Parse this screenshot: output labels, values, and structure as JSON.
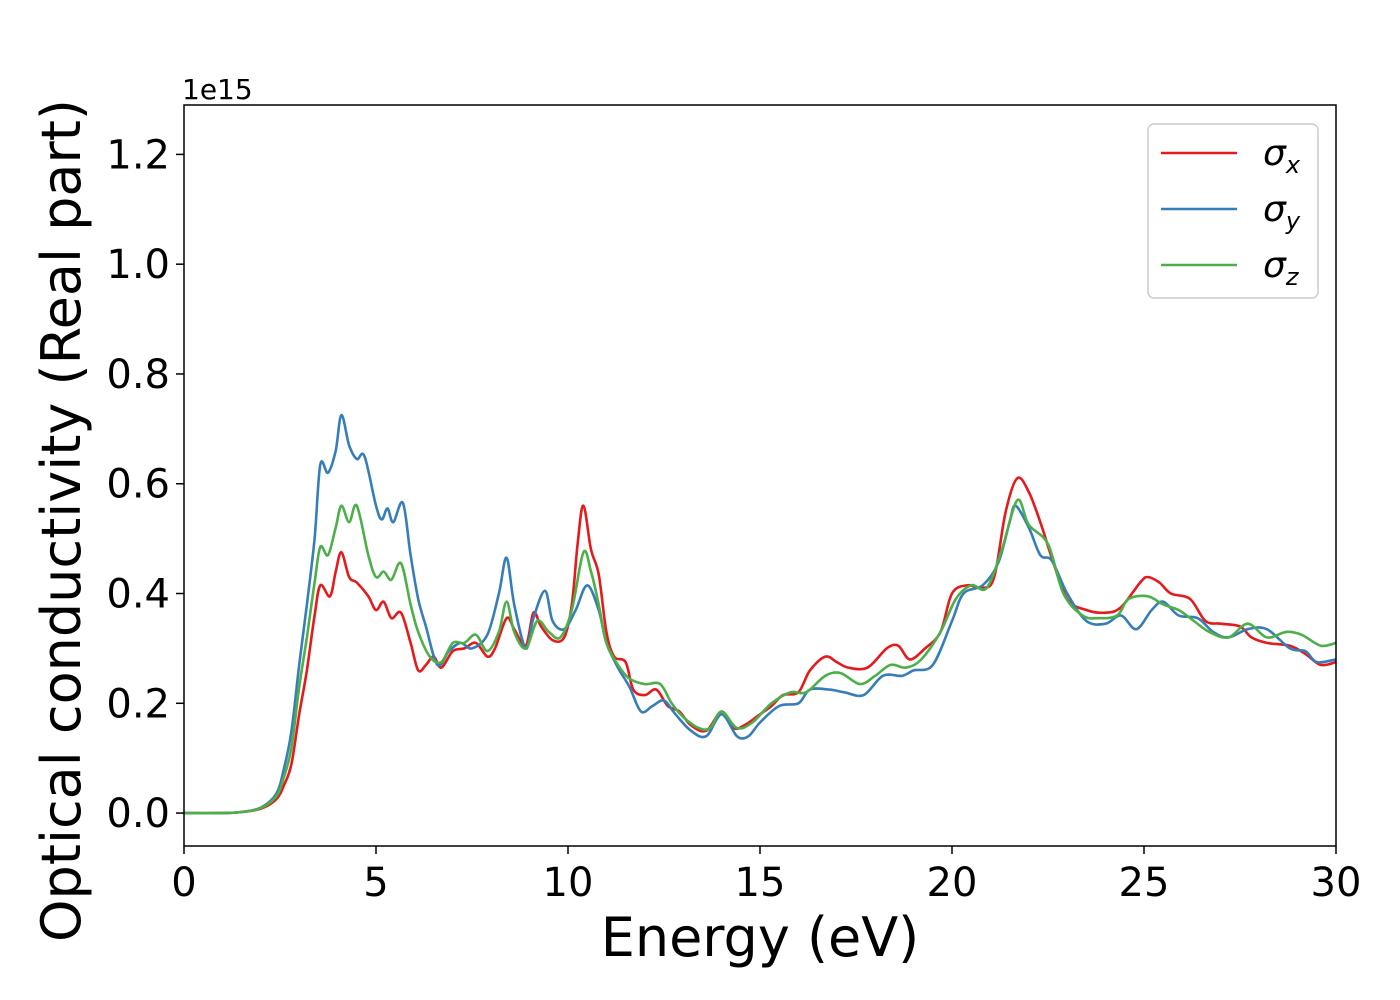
{
  "chart_data": {
    "type": "line",
    "xlabel": "Energy (eV)",
    "ylabel": "Optical conductivity (Real part)",
    "y_offset_label": "1e15",
    "xlim": [
      0,
      30
    ],
    "ylim": [
      -0.06,
      1.29
    ],
    "x_ticks": [
      0,
      5,
      10,
      15,
      20,
      25,
      30
    ],
    "x_tick_labels": [
      "0",
      "5",
      "10",
      "15",
      "20",
      "25",
      "30"
    ],
    "y_ticks": [
      0.0,
      0.2,
      0.4,
      0.6,
      0.8,
      1.0,
      1.2
    ],
    "y_tick_labels": [
      "0.0",
      "0.2",
      "0.4",
      "0.6",
      "0.8",
      "1.0",
      "1.2"
    ],
    "grid": false,
    "legend_position": "top-right",
    "series": [
      {
        "name": "σ",
        "subscript": "x",
        "color": "#e41a1c",
        "points": [
          [
            0,
            0
          ],
          [
            1,
            0
          ],
          [
            1.5,
            0.002
          ],
          [
            2,
            0.008
          ],
          [
            2.4,
            0.025
          ],
          [
            2.6,
            0.05
          ],
          [
            2.8,
            0.09
          ],
          [
            3.0,
            0.18
          ],
          [
            3.2,
            0.26
          ],
          [
            3.4,
            0.36
          ],
          [
            3.55,
            0.415
          ],
          [
            3.8,
            0.395
          ],
          [
            3.95,
            0.44
          ],
          [
            4.1,
            0.475
          ],
          [
            4.3,
            0.43
          ],
          [
            4.5,
            0.42
          ],
          [
            4.8,
            0.395
          ],
          [
            5.0,
            0.37
          ],
          [
            5.2,
            0.385
          ],
          [
            5.4,
            0.355
          ],
          [
            5.65,
            0.365
          ],
          [
            5.9,
            0.31
          ],
          [
            6.1,
            0.26
          ],
          [
            6.3,
            0.27
          ],
          [
            6.5,
            0.285
          ],
          [
            6.7,
            0.265
          ],
          [
            7.0,
            0.295
          ],
          [
            7.3,
            0.3
          ],
          [
            7.6,
            0.31
          ],
          [
            7.9,
            0.285
          ],
          [
            8.1,
            0.3
          ],
          [
            8.4,
            0.355
          ],
          [
            8.6,
            0.335
          ],
          [
            8.9,
            0.305
          ],
          [
            9.1,
            0.365
          ],
          [
            9.3,
            0.34
          ],
          [
            9.6,
            0.315
          ],
          [
            9.9,
            0.32
          ],
          [
            10.1,
            0.38
          ],
          [
            10.25,
            0.49
          ],
          [
            10.4,
            0.56
          ],
          [
            10.6,
            0.48
          ],
          [
            10.8,
            0.435
          ],
          [
            11.0,
            0.33
          ],
          [
            11.2,
            0.285
          ],
          [
            11.5,
            0.275
          ],
          [
            11.7,
            0.225
          ],
          [
            12.0,
            0.215
          ],
          [
            12.3,
            0.225
          ],
          [
            12.6,
            0.195
          ],
          [
            12.9,
            0.185
          ],
          [
            13.2,
            0.16
          ],
          [
            13.6,
            0.15
          ],
          [
            14.0,
            0.185
          ],
          [
            14.3,
            0.155
          ],
          [
            14.6,
            0.16
          ],
          [
            15.0,
            0.18
          ],
          [
            15.3,
            0.195
          ],
          [
            15.6,
            0.215
          ],
          [
            16.0,
            0.22
          ],
          [
            16.3,
            0.26
          ],
          [
            16.7,
            0.285
          ],
          [
            17.0,
            0.275
          ],
          [
            17.3,
            0.265
          ],
          [
            17.8,
            0.265
          ],
          [
            18.3,
            0.3
          ],
          [
            18.6,
            0.305
          ],
          [
            18.9,
            0.28
          ],
          [
            19.3,
            0.3
          ],
          [
            19.7,
            0.33
          ],
          [
            20.0,
            0.4
          ],
          [
            20.4,
            0.415
          ],
          [
            20.8,
            0.41
          ],
          [
            21.1,
            0.43
          ],
          [
            21.4,
            0.55
          ],
          [
            21.7,
            0.61
          ],
          [
            22.0,
            0.585
          ],
          [
            22.3,
            0.53
          ],
          [
            22.6,
            0.465
          ],
          [
            23.0,
            0.39
          ],
          [
            23.5,
            0.37
          ],
          [
            24.0,
            0.365
          ],
          [
            24.4,
            0.375
          ],
          [
            24.9,
            0.42
          ],
          [
            25.1,
            0.43
          ],
          [
            25.4,
            0.42
          ],
          [
            25.7,
            0.4
          ],
          [
            26.2,
            0.39
          ],
          [
            26.6,
            0.35
          ],
          [
            27.0,
            0.345
          ],
          [
            27.5,
            0.34
          ],
          [
            27.8,
            0.32
          ],
          [
            28.2,
            0.31
          ],
          [
            28.8,
            0.305
          ],
          [
            29.2,
            0.29
          ],
          [
            29.6,
            0.27
          ],
          [
            30.0,
            0.275
          ]
        ]
      },
      {
        "name": "σ",
        "subscript": "y",
        "color": "#377eb8",
        "points": [
          [
            0,
            0
          ],
          [
            1,
            0
          ],
          [
            1.5,
            0.002
          ],
          [
            2,
            0.01
          ],
          [
            2.4,
            0.035
          ],
          [
            2.6,
            0.08
          ],
          [
            2.8,
            0.15
          ],
          [
            3.0,
            0.27
          ],
          [
            3.2,
            0.38
          ],
          [
            3.4,
            0.5
          ],
          [
            3.55,
            0.635
          ],
          [
            3.75,
            0.62
          ],
          [
            3.95,
            0.66
          ],
          [
            4.1,
            0.725
          ],
          [
            4.3,
            0.67
          ],
          [
            4.5,
            0.645
          ],
          [
            4.7,
            0.65
          ],
          [
            5.0,
            0.56
          ],
          [
            5.15,
            0.535
          ],
          [
            5.3,
            0.555
          ],
          [
            5.45,
            0.53
          ],
          [
            5.7,
            0.565
          ],
          [
            5.9,
            0.47
          ],
          [
            6.1,
            0.39
          ],
          [
            6.3,
            0.34
          ],
          [
            6.6,
            0.27
          ],
          [
            6.9,
            0.295
          ],
          [
            7.2,
            0.31
          ],
          [
            7.5,
            0.3
          ],
          [
            7.9,
            0.325
          ],
          [
            8.2,
            0.4
          ],
          [
            8.4,
            0.465
          ],
          [
            8.6,
            0.38
          ],
          [
            8.9,
            0.3
          ],
          [
            9.1,
            0.355
          ],
          [
            9.4,
            0.405
          ],
          [
            9.6,
            0.35
          ],
          [
            9.9,
            0.335
          ],
          [
            10.2,
            0.37
          ],
          [
            10.5,
            0.415
          ],
          [
            10.8,
            0.37
          ],
          [
            11.0,
            0.31
          ],
          [
            11.3,
            0.265
          ],
          [
            11.6,
            0.23
          ],
          [
            11.9,
            0.185
          ],
          [
            12.2,
            0.195
          ],
          [
            12.5,
            0.205
          ],
          [
            12.8,
            0.18
          ],
          [
            13.2,
            0.15
          ],
          [
            13.6,
            0.14
          ],
          [
            14.0,
            0.18
          ],
          [
            14.4,
            0.14
          ],
          [
            14.7,
            0.14
          ],
          [
            15.0,
            0.165
          ],
          [
            15.5,
            0.195
          ],
          [
            16.0,
            0.2
          ],
          [
            16.3,
            0.225
          ],
          [
            16.8,
            0.225
          ],
          [
            17.2,
            0.22
          ],
          [
            17.7,
            0.215
          ],
          [
            18.2,
            0.25
          ],
          [
            18.7,
            0.25
          ],
          [
            19.0,
            0.26
          ],
          [
            19.5,
            0.27
          ],
          [
            20.0,
            0.35
          ],
          [
            20.3,
            0.4
          ],
          [
            20.8,
            0.415
          ],
          [
            21.2,
            0.455
          ],
          [
            21.5,
            0.53
          ],
          [
            21.65,
            0.56
          ],
          [
            22.0,
            0.52
          ],
          [
            22.3,
            0.47
          ],
          [
            22.6,
            0.46
          ],
          [
            23.0,
            0.4
          ],
          [
            23.5,
            0.35
          ],
          [
            24.0,
            0.345
          ],
          [
            24.4,
            0.36
          ],
          [
            24.8,
            0.335
          ],
          [
            25.2,
            0.37
          ],
          [
            25.5,
            0.385
          ],
          [
            25.9,
            0.36
          ],
          [
            26.4,
            0.355
          ],
          [
            26.8,
            0.33
          ],
          [
            27.2,
            0.32
          ],
          [
            27.7,
            0.335
          ],
          [
            28.2,
            0.335
          ],
          [
            28.8,
            0.3
          ],
          [
            29.2,
            0.295
          ],
          [
            29.5,
            0.275
          ],
          [
            30.0,
            0.28
          ]
        ]
      },
      {
        "name": "σ",
        "subscript": "z",
        "color": "#4daf4a",
        "points": [
          [
            0,
            0
          ],
          [
            1,
            0
          ],
          [
            1.5,
            0.002
          ],
          [
            2,
            0.009
          ],
          [
            2.4,
            0.03
          ],
          [
            2.6,
            0.065
          ],
          [
            2.8,
            0.12
          ],
          [
            3.0,
            0.23
          ],
          [
            3.2,
            0.32
          ],
          [
            3.4,
            0.42
          ],
          [
            3.55,
            0.485
          ],
          [
            3.75,
            0.47
          ],
          [
            3.95,
            0.52
          ],
          [
            4.1,
            0.56
          ],
          [
            4.3,
            0.53
          ],
          [
            4.5,
            0.56
          ],
          [
            4.8,
            0.47
          ],
          [
            5.0,
            0.43
          ],
          [
            5.2,
            0.44
          ],
          [
            5.4,
            0.425
          ],
          [
            5.65,
            0.455
          ],
          [
            5.9,
            0.38
          ],
          [
            6.1,
            0.33
          ],
          [
            6.4,
            0.285
          ],
          [
            6.7,
            0.275
          ],
          [
            7.0,
            0.31
          ],
          [
            7.3,
            0.31
          ],
          [
            7.6,
            0.325
          ],
          [
            7.9,
            0.295
          ],
          [
            8.2,
            0.33
          ],
          [
            8.4,
            0.385
          ],
          [
            8.6,
            0.33
          ],
          [
            8.9,
            0.3
          ],
          [
            9.2,
            0.35
          ],
          [
            9.5,
            0.33
          ],
          [
            9.8,
            0.32
          ],
          [
            10.1,
            0.37
          ],
          [
            10.4,
            0.475
          ],
          [
            10.6,
            0.44
          ],
          [
            10.8,
            0.38
          ],
          [
            11.0,
            0.31
          ],
          [
            11.3,
            0.27
          ],
          [
            11.6,
            0.245
          ],
          [
            12.0,
            0.235
          ],
          [
            12.4,
            0.235
          ],
          [
            12.7,
            0.2
          ],
          [
            13.0,
            0.175
          ],
          [
            13.4,
            0.155
          ],
          [
            13.7,
            0.155
          ],
          [
            14.0,
            0.185
          ],
          [
            14.4,
            0.155
          ],
          [
            14.8,
            0.165
          ],
          [
            15.3,
            0.2
          ],
          [
            15.8,
            0.22
          ],
          [
            16.2,
            0.22
          ],
          [
            16.7,
            0.25
          ],
          [
            17.1,
            0.255
          ],
          [
            17.6,
            0.235
          ],
          [
            18.0,
            0.25
          ],
          [
            18.4,
            0.27
          ],
          [
            18.8,
            0.265
          ],
          [
            19.2,
            0.28
          ],
          [
            19.7,
            0.33
          ],
          [
            20.1,
            0.39
          ],
          [
            20.5,
            0.415
          ],
          [
            20.9,
            0.41
          ],
          [
            21.3,
            0.48
          ],
          [
            21.7,
            0.57
          ],
          [
            22.0,
            0.525
          ],
          [
            22.5,
            0.49
          ],
          [
            22.9,
            0.4
          ],
          [
            23.4,
            0.36
          ],
          [
            23.8,
            0.355
          ],
          [
            24.3,
            0.36
          ],
          [
            24.6,
            0.39
          ],
          [
            25.1,
            0.395
          ],
          [
            25.5,
            0.38
          ],
          [
            25.9,
            0.37
          ],
          [
            26.3,
            0.35
          ],
          [
            26.7,
            0.33
          ],
          [
            27.2,
            0.32
          ],
          [
            27.7,
            0.345
          ],
          [
            28.2,
            0.32
          ],
          [
            28.7,
            0.33
          ],
          [
            29.1,
            0.325
          ],
          [
            29.6,
            0.305
          ],
          [
            30.0,
            0.31
          ]
        ]
      }
    ]
  }
}
